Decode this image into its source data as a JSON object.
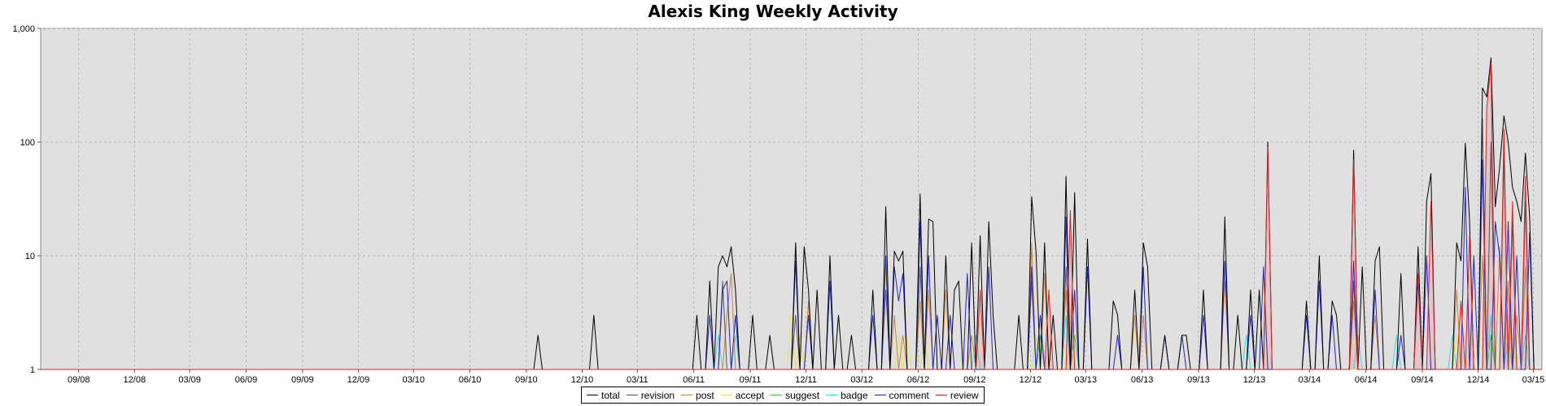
{
  "chart_data": {
    "type": "line",
    "title": "Alexis King Weekly Activity",
    "xlabel": "",
    "ylabel": "",
    "yscale": "log",
    "ylim": [
      1,
      1000
    ],
    "yticks": [
      "1",
      "10",
      "100",
      "1,000"
    ],
    "xlim": [
      "2008-07-01",
      "2015-03-15"
    ],
    "xticks": [
      "09/08",
      "12/08",
      "03/09",
      "06/09",
      "09/09",
      "12/09",
      "03/10",
      "06/10",
      "09/10",
      "12/10",
      "03/11",
      "06/11",
      "09/11",
      "12/11",
      "03/12",
      "06/12",
      "09/12",
      "12/12",
      "03/13",
      "06/13",
      "09/13",
      "12/13",
      "03/14",
      "06/14",
      "09/14",
      "12/14",
      "03/15"
    ],
    "grid": true,
    "legend_position": "bottom",
    "series": [
      {
        "name": "total",
        "color": "#000000",
        "points": [
          [
            "2010-09-20",
            2
          ],
          [
            "2010-12-20",
            3
          ],
          [
            "2011-06-06",
            3
          ],
          [
            "2011-06-27",
            6
          ],
          [
            "2011-07-11",
            8
          ],
          [
            "2011-07-18",
            10
          ],
          [
            "2011-07-25",
            8
          ],
          [
            "2011-08-01",
            12
          ],
          [
            "2011-08-08",
            5
          ],
          [
            "2011-09-05",
            3
          ],
          [
            "2011-10-03",
            2
          ],
          [
            "2011-11-14",
            13
          ],
          [
            "2011-11-28",
            12
          ],
          [
            "2011-12-05",
            5
          ],
          [
            "2011-12-19",
            5
          ],
          [
            "2012-01-09",
            10
          ],
          [
            "2012-01-23",
            3
          ],
          [
            "2012-02-13",
            2
          ],
          [
            "2012-03-19",
            5
          ],
          [
            "2012-04-09",
            27
          ],
          [
            "2012-04-23",
            11
          ],
          [
            "2012-04-30",
            9
          ],
          [
            "2012-05-07",
            11
          ],
          [
            "2012-06-04",
            35
          ],
          [
            "2012-06-18",
            21
          ],
          [
            "2012-06-25",
            20
          ],
          [
            "2012-07-16",
            10
          ],
          [
            "2012-07-30",
            5
          ],
          [
            "2012-08-06",
            6
          ],
          [
            "2012-08-27",
            13
          ],
          [
            "2012-09-10",
            15
          ],
          [
            "2012-09-24",
            20
          ],
          [
            "2012-10-01",
            3
          ],
          [
            "2012-11-12",
            3
          ],
          [
            "2012-12-03",
            33
          ],
          [
            "2012-12-10",
            11
          ],
          [
            "2012-12-24",
            13
          ],
          [
            "2013-01-07",
            3
          ],
          [
            "2013-01-28",
            50
          ],
          [
            "2013-02-11",
            36
          ],
          [
            "2013-03-04",
            14
          ],
          [
            "2013-04-15",
            4
          ],
          [
            "2013-04-22",
            3
          ],
          [
            "2013-05-20",
            5
          ],
          [
            "2013-06-03",
            13
          ],
          [
            "2013-06-10",
            8
          ],
          [
            "2013-07-08",
            2
          ],
          [
            "2013-08-05",
            2
          ],
          [
            "2013-08-12",
            2
          ],
          [
            "2013-09-09",
            5
          ],
          [
            "2013-10-14",
            22
          ],
          [
            "2013-11-04",
            3
          ],
          [
            "2013-11-25",
            5
          ],
          [
            "2013-12-09",
            5
          ],
          [
            "2013-12-23",
            100
          ],
          [
            "2014-02-24",
            4
          ],
          [
            "2014-03-17",
            10
          ],
          [
            "2014-04-07",
            4
          ],
          [
            "2014-04-14",
            3
          ],
          [
            "2014-05-12",
            85
          ],
          [
            "2014-05-26",
            8
          ],
          [
            "2014-06-16",
            9
          ],
          [
            "2014-06-23",
            12
          ],
          [
            "2014-07-28",
            7
          ],
          [
            "2014-08-25",
            12
          ],
          [
            "2014-09-08",
            30
          ],
          [
            "2014-09-15",
            53
          ],
          [
            "2014-10-27",
            13
          ],
          [
            "2014-11-03",
            9
          ],
          [
            "2014-11-10",
            98
          ],
          [
            "2014-11-17",
            20
          ],
          [
            "2014-12-08",
            300
          ],
          [
            "2014-12-15",
            250
          ],
          [
            "2014-12-22",
            550
          ],
          [
            "2014-12-29",
            27
          ],
          [
            "2015-01-05",
            60
          ],
          [
            "2015-01-12",
            170
          ],
          [
            "2015-01-19",
            100
          ],
          [
            "2015-01-26",
            40
          ],
          [
            "2015-02-02",
            30
          ],
          [
            "2015-02-09",
            20
          ],
          [
            "2015-02-16",
            80
          ],
          [
            "2015-02-23",
            22
          ]
        ]
      },
      {
        "name": "revision",
        "color": "#555555",
        "points": [
          [
            "2011-07-18",
            6
          ],
          [
            "2011-11-14",
            3
          ],
          [
            "2012-04-09",
            5
          ],
          [
            "2012-06-04",
            8
          ],
          [
            "2012-12-03",
            6
          ],
          [
            "2013-01-28",
            8
          ],
          [
            "2014-05-12",
            6
          ],
          [
            "2014-12-08",
            160
          ],
          [
            "2014-12-22",
            100
          ],
          [
            "2015-01-12",
            80
          ],
          [
            "2015-01-26",
            20
          ],
          [
            "2015-02-16",
            30
          ]
        ]
      },
      {
        "name": "post",
        "color": "#c8863a",
        "points": [
          [
            "2011-07-25",
            3
          ],
          [
            "2011-08-01",
            7
          ],
          [
            "2011-12-05",
            4
          ],
          [
            "2012-04-09",
            9
          ],
          [
            "2012-04-23",
            3
          ],
          [
            "2012-05-07",
            2
          ],
          [
            "2012-06-04",
            4
          ],
          [
            "2012-06-18",
            5
          ],
          [
            "2012-07-16",
            5
          ],
          [
            "2012-08-27",
            2
          ],
          [
            "2012-12-03",
            13
          ],
          [
            "2012-12-24",
            7
          ],
          [
            "2013-01-28",
            5
          ],
          [
            "2013-05-20",
            3
          ],
          [
            "2013-06-03",
            3
          ],
          [
            "2013-10-14",
            6
          ],
          [
            "2014-05-12",
            4
          ],
          [
            "2014-06-16",
            3
          ],
          [
            "2014-10-27",
            5
          ],
          [
            "2014-12-08",
            10
          ],
          [
            "2015-01-05",
            12
          ],
          [
            "2015-01-19",
            6
          ],
          [
            "2015-02-02",
            3
          ],
          [
            "2015-02-16",
            8
          ]
        ]
      },
      {
        "name": "accept",
        "color": "#e6e65a",
        "points": [
          [
            "2011-11-07",
            3
          ],
          [
            "2011-11-21",
            2
          ],
          [
            "2012-04-30",
            2
          ],
          [
            "2012-05-14",
            2
          ],
          [
            "2012-06-11",
            2
          ],
          [
            "2012-12-10",
            2
          ],
          [
            "2013-02-04",
            2
          ],
          [
            "2014-10-27",
            2
          ],
          [
            "2014-12-15",
            2
          ],
          [
            "2015-01-26",
            2
          ]
        ]
      },
      {
        "name": "suggest",
        "color": "#3ac83a",
        "points": [
          [
            "2012-12-17",
            2
          ],
          [
            "2013-02-11",
            2
          ],
          [
            "2014-12-22",
            2
          ]
        ]
      },
      {
        "name": "badge",
        "color": "#33e0e0",
        "points": [
          [
            "2011-07-11",
            2
          ],
          [
            "2011-08-08",
            2
          ],
          [
            "2012-06-11",
            2
          ],
          [
            "2012-09-03",
            2
          ],
          [
            "2012-12-10",
            2
          ],
          [
            "2013-01-28",
            3
          ],
          [
            "2013-11-18",
            2
          ],
          [
            "2014-05-19",
            2
          ],
          [
            "2014-07-21",
            2
          ],
          [
            "2014-10-20",
            2
          ],
          [
            "2014-12-22",
            3
          ],
          [
            "2015-01-19",
            2
          ],
          [
            "2015-02-16",
            2
          ]
        ]
      },
      {
        "name": "comment",
        "color": "#2222cc",
        "points": [
          [
            "2011-06-27",
            3
          ],
          [
            "2011-07-18",
            5
          ],
          [
            "2011-07-25",
            6
          ],
          [
            "2011-08-08",
            3
          ],
          [
            "2011-11-14",
            9
          ],
          [
            "2011-12-05",
            3
          ],
          [
            "2012-01-09",
            6
          ],
          [
            "2012-03-19",
            3
          ],
          [
            "2012-04-09",
            10
          ],
          [
            "2012-04-23",
            8
          ],
          [
            "2012-04-30",
            4
          ],
          [
            "2012-05-07",
            7
          ],
          [
            "2012-06-04",
            20
          ],
          [
            "2012-06-18",
            10
          ],
          [
            "2012-07-02",
            3
          ],
          [
            "2012-07-23",
            3
          ],
          [
            "2012-08-20",
            7
          ],
          [
            "2012-09-24",
            8
          ],
          [
            "2012-12-03",
            8
          ],
          [
            "2012-12-17",
            3
          ],
          [
            "2013-01-28",
            22
          ],
          [
            "2013-02-11",
            5
          ],
          [
            "2013-03-04",
            8
          ],
          [
            "2013-04-22",
            2
          ],
          [
            "2013-06-03",
            8
          ],
          [
            "2013-07-08",
            2
          ],
          [
            "2013-08-05",
            2
          ],
          [
            "2013-09-09",
            3
          ],
          [
            "2013-10-14",
            9
          ],
          [
            "2013-11-25",
            3
          ],
          [
            "2013-12-16",
            8
          ],
          [
            "2014-02-24",
            3
          ],
          [
            "2014-03-17",
            6
          ],
          [
            "2014-04-07",
            3
          ],
          [
            "2014-05-12",
            9
          ],
          [
            "2014-06-16",
            5
          ],
          [
            "2014-07-28",
            2
          ],
          [
            "2014-08-25",
            6
          ],
          [
            "2014-09-08",
            10
          ],
          [
            "2014-11-10",
            40
          ],
          [
            "2014-11-24",
            10
          ],
          [
            "2014-12-08",
            70
          ],
          [
            "2014-12-29",
            20
          ],
          [
            "2015-01-05",
            10
          ],
          [
            "2015-01-19",
            20
          ],
          [
            "2015-02-02",
            10
          ],
          [
            "2015-02-23",
            16
          ]
        ]
      },
      {
        "name": "review",
        "color": "#e02020",
        "points": [
          [
            "2012-09-10",
            5
          ],
          [
            "2012-12-31",
            5
          ],
          [
            "2013-02-04",
            25
          ],
          [
            "2013-12-23",
            90
          ],
          [
            "2014-05-12",
            70
          ],
          [
            "2014-08-25",
            7
          ],
          [
            "2014-09-15",
            30
          ],
          [
            "2014-11-03",
            4
          ],
          [
            "2014-11-17",
            15
          ],
          [
            "2014-12-15",
            200
          ],
          [
            "2014-12-22",
            500
          ],
          [
            "2015-01-12",
            130
          ],
          [
            "2015-01-26",
            30
          ],
          [
            "2015-02-16",
            50
          ]
        ]
      }
    ]
  }
}
